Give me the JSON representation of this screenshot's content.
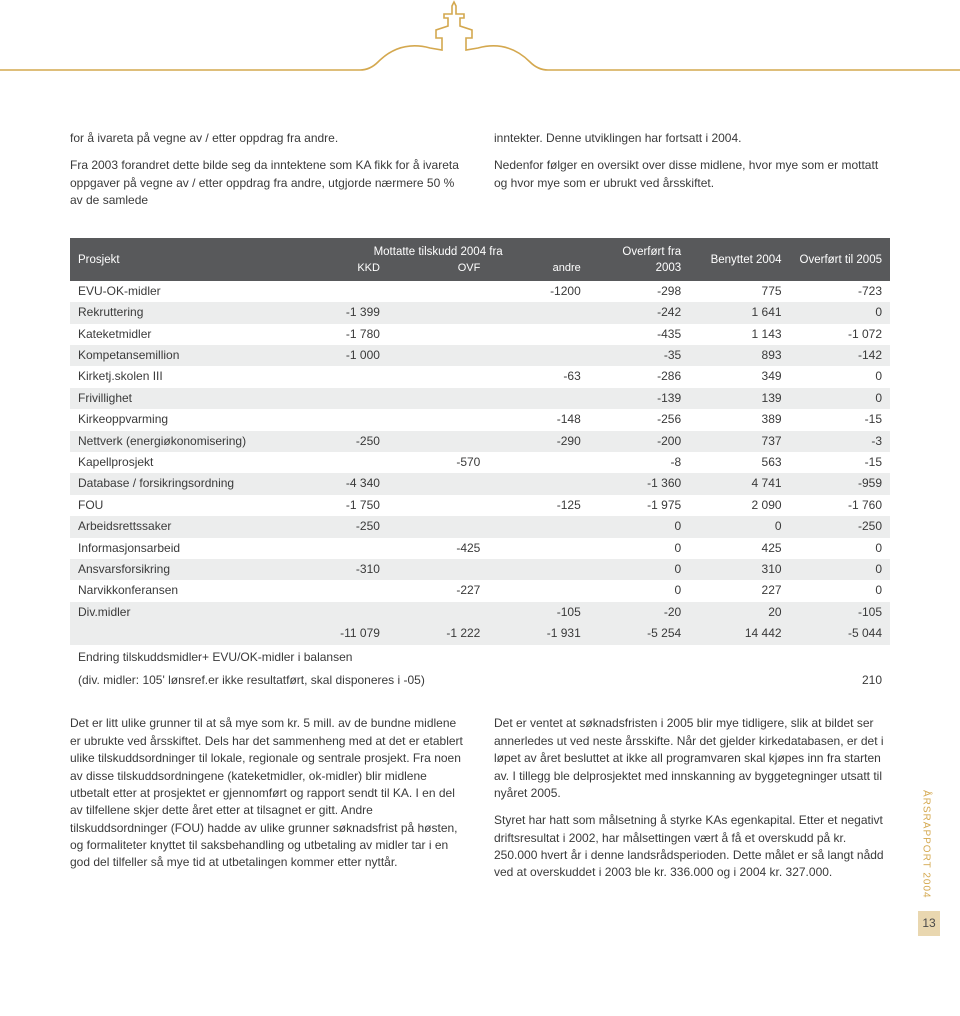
{
  "banner": {
    "line_color": "#d4a84f",
    "bg_color": "#ffffff"
  },
  "top": {
    "left_p1": "for å ivareta på vegne av / etter oppdrag fra andre.",
    "left_p2": "Fra 2003 forandret dette bilde seg da inntektene som KA fikk for å ivareta oppgaver på vegne av / etter oppdrag fra andre, utgjorde nærmere 50 % av de samlede",
    "right_p1": "inntekter. Denne utviklingen har fortsatt i 2004.",
    "right_p2": "Nedenfor følger en oversikt over disse midlene, hvor mye som er mottatt og hvor mye som er ubrukt ved årsskiftet."
  },
  "table": {
    "head": {
      "prosjekt": "Prosjekt",
      "group": "Mottatte tilskudd 2004 fra",
      "kkd": "KKD",
      "ovf": "OVF",
      "andre": "andre",
      "overfort_fra": "Overført fra 2003",
      "benyttet": "Benyttet 2004",
      "overfort_til": "Overført til 2005"
    },
    "rows": [
      {
        "name": "EVU-OK-midler",
        "kkd": "",
        "ovf": "",
        "andre": "-1200",
        "of": "-298",
        "ben": "775",
        "ot": "-723"
      },
      {
        "name": "Rekruttering",
        "kkd": "-1 399",
        "ovf": "",
        "andre": "",
        "of": "-242",
        "ben": "1 641",
        "ot": "0"
      },
      {
        "name": "Kateketmidler",
        "kkd": "-1 780",
        "ovf": "",
        "andre": "",
        "of": "-435",
        "ben": "1 143",
        "ot": "-1 072"
      },
      {
        "name": "Kompetansemillion",
        "kkd": "-1 000",
        "ovf": "",
        "andre": "",
        "of": "-35",
        "ben": "893",
        "ot": "-142"
      },
      {
        "name": "Kirketj.skolen III",
        "kkd": "",
        "ovf": "",
        "andre": "-63",
        "of": "-286",
        "ben": "349",
        "ot": "0"
      },
      {
        "name": "Frivillighet",
        "kkd": "",
        "ovf": "",
        "andre": "",
        "of": "-139",
        "ben": "139",
        "ot": "0"
      },
      {
        "name": "Kirkeoppvarming",
        "kkd": "",
        "ovf": "",
        "andre": "-148",
        "of": "-256",
        "ben": "389",
        "ot": "-15"
      },
      {
        "name": "Nettverk (energiøkonomisering)",
        "kkd": "-250",
        "ovf": "",
        "andre": "-290",
        "of": "-200",
        "ben": "737",
        "ot": "-3"
      },
      {
        "name": "Kapellprosjekt",
        "kkd": "",
        "ovf": "-570",
        "andre": "",
        "of": "-8",
        "ben": "563",
        "ot": "-15"
      },
      {
        "name": "Database / forsikringsordning",
        "kkd": "-4 340",
        "ovf": "",
        "andre": "",
        "of": "-1 360",
        "ben": "4 741",
        "ot": "-959"
      },
      {
        "name": "FOU",
        "kkd": "-1 750",
        "ovf": "",
        "andre": "-125",
        "of": "-1 975",
        "ben": "2 090",
        "ot": "-1 760"
      },
      {
        "name": "Arbeidsrettssaker",
        "kkd": "-250",
        "ovf": "",
        "andre": "",
        "of": "0",
        "ben": "0",
        "ot": "-250"
      },
      {
        "name": "Informasjonsarbeid",
        "kkd": "",
        "ovf": "-425",
        "andre": "",
        "of": "0",
        "ben": "425",
        "ot": "0"
      },
      {
        "name": "Ansvarsforsikring",
        "kkd": "-310",
        "ovf": "",
        "andre": "",
        "of": "0",
        "ben": "310",
        "ot": "0"
      },
      {
        "name": "Narvikkonferansen",
        "kkd": "",
        "ovf": "-227",
        "andre": "",
        "of": "0",
        "ben": "227",
        "ot": "0"
      },
      {
        "name": "Div.midler",
        "kkd": "",
        "ovf": "",
        "andre": "-105",
        "of": "-20",
        "ben": "20",
        "ot": "-105"
      }
    ],
    "total": {
      "name": "",
      "kkd": "-11 079",
      "ovf": "-1 222",
      "andre": "-1 931",
      "of": "-5 254",
      "ben": "14 442",
      "ot": "-5 044"
    },
    "note_line1": "Endring tilskuddsmidler+ EVU/OK-midler i balansen",
    "note_line2": "(div. midler: 105' lønsref.er ikke resultatført, skal disponeres i -05)",
    "note_val": "210"
  },
  "bottom": {
    "left": "Det er litt ulike grunner til at så mye som kr. 5 mill. av de bundne midlene er ubrukte ved årsskiftet. Dels har det sammenheng med at det er etablert ulike tilskuddsordninger til lokale, regionale og sentrale prosjekt. Fra noen av disse tilskuddsordningene (kateketmidler, ok-midler) blir midlene utbetalt etter at prosjektet er gjennomført og rapport sendt til KA. I en del av tilfellene skjer dette året etter at tilsagnet er gitt. Andre tilskuddsordninger (FOU) hadde av ulike grunner søknadsfrist på høsten, og formaliteter knyttet til saksbehandling og utbetaling av midler tar i en god del tilfeller så mye tid at utbetalingen kommer etter nyttår.",
    "right_p1": "Det er ventet at søknadsfristen i 2005 blir mye tidligere, slik at bildet ser annerledes ut ved neste årsskifte. Når det gjelder kirkedatabasen, er det i løpet av året besluttet at ikke all programvaren skal kjøpes inn fra starten av. I tillegg ble delprosjektet med innskanning av byggetegninger utsatt til nyåret 2005.",
    "right_p2": "Styret har hatt som målsetning å styrke KAs egenkapital. Etter et negativt driftsresultat i 2002, har målsettingen vært å få et overskudd på kr. 250.000 hvert år i denne landsrådsperioden. Dette målet er så langt nådd ved at overskuddet i 2003 ble kr. 336.000 og i 2004 kr. 327.000."
  },
  "side": {
    "label": "ÅRSRAPPORT 2004",
    "page": "13"
  }
}
